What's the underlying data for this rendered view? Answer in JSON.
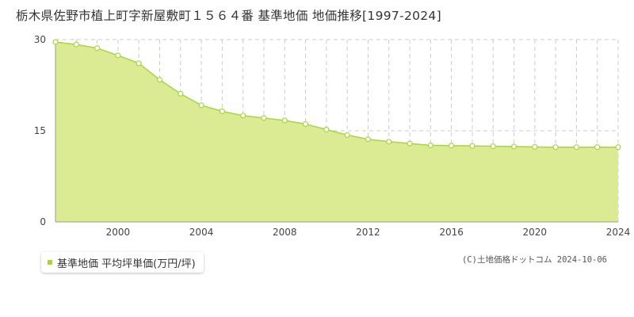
{
  "title": "栃木県佐野市植上町字新屋敷町１５６４番 基準地価 地価推移[1997-2024]",
  "legend": {
    "label": "基準地価 平均坪単価(万円/坪)"
  },
  "copyright": "(C)土地価格ドットコム 2024-10-06",
  "colors": {
    "fill": "#dbeb94",
    "line": "#a8d63a",
    "marker": "#ffffff",
    "grid": "#cccccc"
  },
  "chart_data": {
    "type": "area",
    "title": "栃木県佐野市植上町字新屋敷町１５６４番 基準地価 地価推移[1997-2024]",
    "xlabel": "",
    "ylabel": "",
    "xlim": [
      1997,
      2024
    ],
    "ylim": [
      0,
      30
    ],
    "yticks": [
      0,
      15,
      30
    ],
    "xticks": [
      2000,
      2004,
      2008,
      2012,
      2016,
      2020,
      2024
    ],
    "grid": true,
    "legend_position": "bottom-left",
    "series": [
      {
        "name": "基準地価 平均坪単価(万円/坪)",
        "x": [
          1997,
          1998,
          1999,
          2000,
          2001,
          2002,
          2003,
          2004,
          2005,
          2006,
          2007,
          2008,
          2009,
          2010,
          2011,
          2012,
          2013,
          2014,
          2015,
          2016,
          2017,
          2018,
          2019,
          2020,
          2021,
          2022,
          2023,
          2024
        ],
        "values": [
          29.6,
          29.2,
          28.6,
          27.4,
          26.1,
          23.4,
          21.1,
          19.2,
          18.2,
          17.5,
          17.1,
          16.7,
          16.1,
          15.2,
          14.3,
          13.6,
          13.2,
          12.9,
          12.6,
          12.55,
          12.5,
          12.45,
          12.4,
          12.35,
          12.3,
          12.3,
          12.3,
          12.3
        ]
      }
    ]
  }
}
